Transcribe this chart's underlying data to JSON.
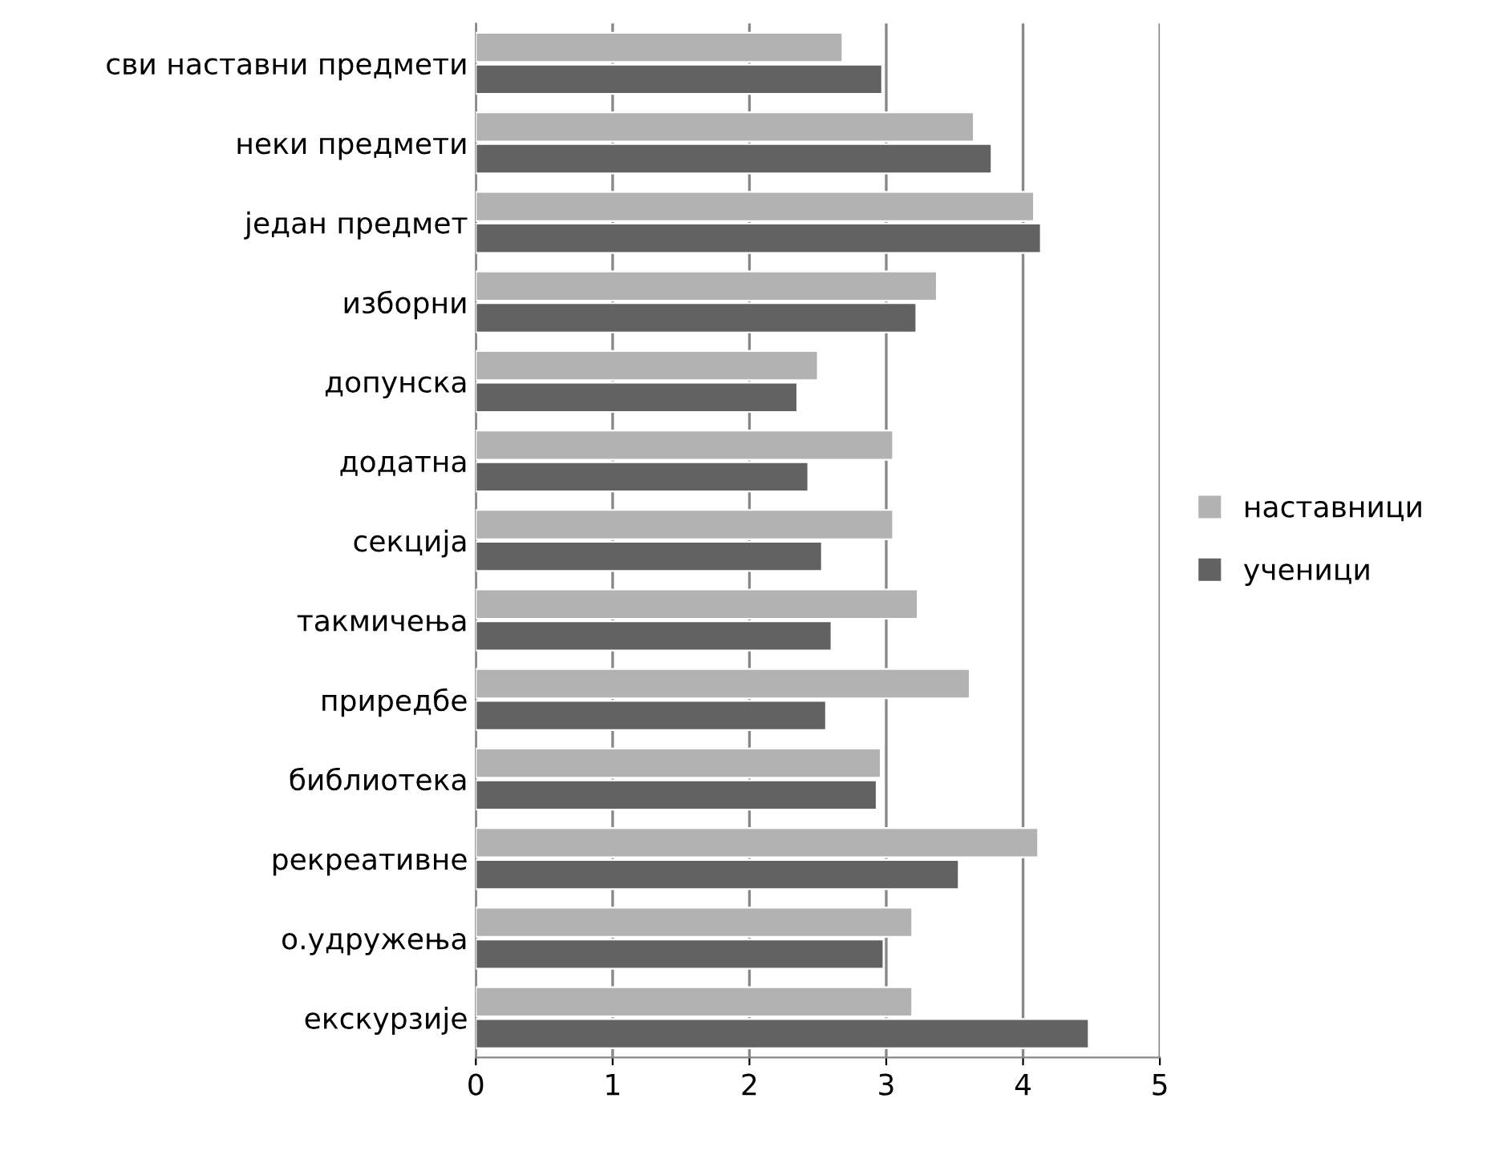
{
  "chart_data": {
    "type": "bar",
    "orientation": "horizontal",
    "categories": [
      "сви наставни предмети",
      "неки предмети",
      "један предмет",
      "изборни",
      "допунска",
      "додатна",
      "секција",
      "такмичења",
      "приредбе",
      "библиотека",
      "рекреативне",
      "о.удружења",
      "екскурзије"
    ],
    "series": [
      {
        "name": "наставници",
        "color": "#b2b2b2",
        "values": [
          2.68,
          3.64,
          4.08,
          3.37,
          2.5,
          3.05,
          3.05,
          3.23,
          3.61,
          2.96,
          4.11,
          3.19,
          3.19
        ]
      },
      {
        "name": "ученици",
        "color": "#626262",
        "values": [
          2.97,
          3.77,
          4.13,
          3.22,
          2.35,
          2.43,
          2.53,
          2.6,
          2.56,
          2.93,
          3.53,
          2.98,
          4.48
        ]
      }
    ],
    "xlim": [
      0,
      5
    ],
    "xticks": [
      0,
      1,
      2,
      3,
      4,
      5
    ],
    "grid": "x",
    "legend": "right"
  }
}
